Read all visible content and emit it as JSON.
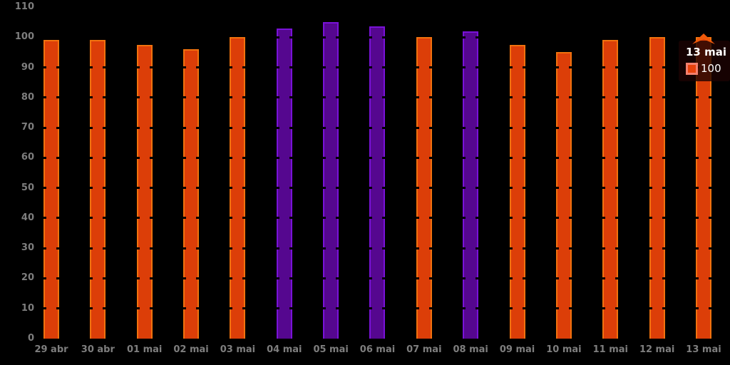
{
  "chart_data": {
    "type": "bar",
    "title": "",
    "xlabel": "",
    "ylabel": "",
    "categories": [
      "29 abr",
      "30 abr",
      "01 mai",
      "02 mai",
      "03 mai",
      "04 mai",
      "05 mai",
      "06 mai",
      "07 mai",
      "08 mai",
      "09 mai",
      "10 mai",
      "11 mai",
      "12 mai",
      "13 mai"
    ],
    "values": [
      99,
      99,
      97.5,
      96,
      100,
      103,
      105,
      103.5,
      100,
      102,
      97.5,
      95,
      99,
      100,
      100
    ],
    "bar_colors": [
      "orange",
      "orange",
      "orange",
      "orange",
      "orange",
      "purple",
      "purple",
      "purple",
      "orange",
      "purple",
      "orange",
      "orange",
      "orange",
      "orange",
      "orange"
    ],
    "colors": {
      "orange": {
        "fill": "#dc3e08",
        "edge": "#f1720e"
      },
      "purple": {
        "fill": "#55078f",
        "edge": "#7912d8"
      }
    },
    "background": "#000000",
    "axis_label_color": "#7e7e7e",
    "y_ticks": [
      0,
      10,
      20,
      30,
      40,
      50,
      60,
      70,
      80,
      90,
      100,
      110
    ],
    "ylim": [
      0,
      110
    ],
    "grid": "horizontal gridlines drawn in black over bars (visible as notches on bar edges)",
    "legend_position": "none",
    "selected_bar": "13 mai"
  },
  "tooltip": {
    "title": "13 mai",
    "value": "100",
    "swatch_fill": "#e8420c",
    "swatch_border": "#f4806e",
    "marker_color": "#f0590a"
  }
}
